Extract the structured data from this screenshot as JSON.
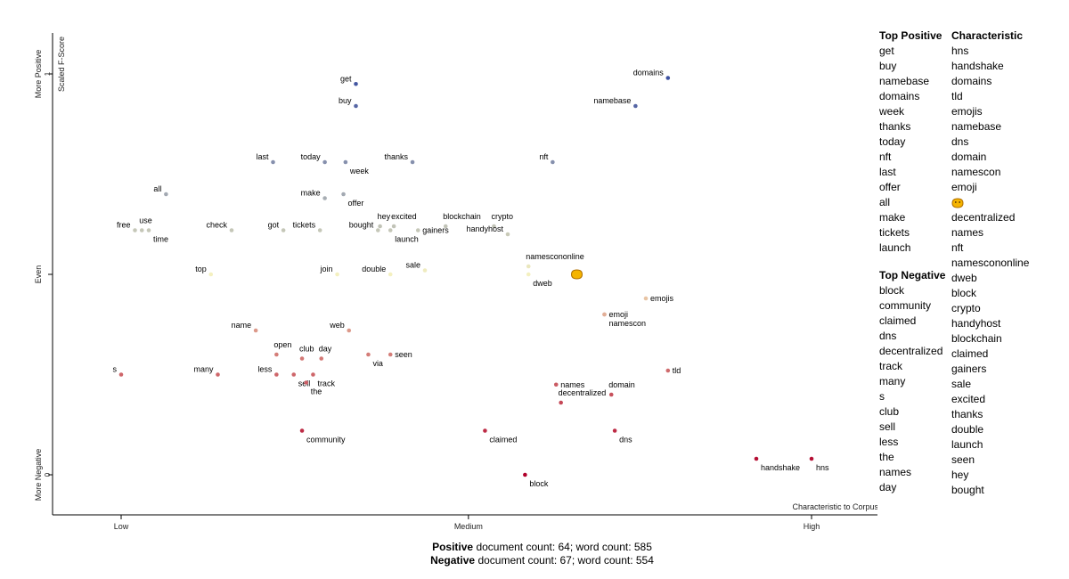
{
  "chart_data": {
    "type": "scatter",
    "ylabel": "Scaled F-Score",
    "xlabel": "Characteristic to Corpus",
    "x_ticks": [
      "Low",
      "Medium",
      "High"
    ],
    "y_ticks": [
      "More Positive",
      "Even",
      "More Negative"
    ],
    "y_tick_numbers": [
      "1",
      "0"
    ],
    "xlim": [
      0,
      1
    ],
    "ylim": [
      0,
      1
    ],
    "color_scale": {
      "positive": "#3b4fa0",
      "neutral": "#f4f0c0",
      "negative": "#b1002a"
    },
    "points": [
      {
        "term": "get",
        "x": 0.34,
        "y": 0.975,
        "label_side": "left"
      },
      {
        "term": "buy",
        "x": 0.34,
        "y": 0.92,
        "label_side": "left"
      },
      {
        "term": "domains",
        "x": 0.792,
        "y": 0.99,
        "label_side": "left"
      },
      {
        "term": "namebase",
        "x": 0.745,
        "y": 0.92,
        "label_side": "left"
      },
      {
        "term": "last",
        "x": 0.22,
        "y": 0.78,
        "label_side": "left"
      },
      {
        "term": "today",
        "x": 0.295,
        "y": 0.78,
        "label_side": "left"
      },
      {
        "term": "week",
        "x": 0.325,
        "y": 0.78,
        "label_side": "below"
      },
      {
        "term": "thanks",
        "x": 0.422,
        "y": 0.78,
        "label_side": "left"
      },
      {
        "term": "nft",
        "x": 0.625,
        "y": 0.78,
        "label_side": "left"
      },
      {
        "term": "all",
        "x": 0.065,
        "y": 0.7,
        "label_side": "left"
      },
      {
        "term": "make",
        "x": 0.295,
        "y": 0.69,
        "label_side": "left"
      },
      {
        "term": "offer",
        "x": 0.322,
        "y": 0.7,
        "label_side": "below"
      },
      {
        "term": "use",
        "x": 0.03,
        "y": 0.61,
        "label_side": "above"
      },
      {
        "term": "free",
        "x": 0.02,
        "y": 0.61,
        "label_side": "left"
      },
      {
        "term": "time",
        "x": 0.04,
        "y": 0.61,
        "label_side": "below"
      },
      {
        "term": "check",
        "x": 0.16,
        "y": 0.61,
        "label_side": "left"
      },
      {
        "term": "got",
        "x": 0.235,
        "y": 0.61,
        "label_side": "left"
      },
      {
        "term": "tickets",
        "x": 0.288,
        "y": 0.61,
        "label_side": "left"
      },
      {
        "term": "bought",
        "x": 0.372,
        "y": 0.61,
        "label_side": "left"
      },
      {
        "term": "hey",
        "x": 0.375,
        "y": 0.62,
        "label_side": "above"
      },
      {
        "term": "excited",
        "x": 0.395,
        "y": 0.62,
        "label_side": "above"
      },
      {
        "term": "launch",
        "x": 0.39,
        "y": 0.61,
        "label_side": "below"
      },
      {
        "term": "gainers",
        "x": 0.43,
        "y": 0.61,
        "label_side": "right"
      },
      {
        "term": "blockchain",
        "x": 0.47,
        "y": 0.62,
        "label_side": "above"
      },
      {
        "term": "crypto",
        "x": 0.54,
        "y": 0.62,
        "label_side": "above"
      },
      {
        "term": "handyhost",
        "x": 0.56,
        "y": 0.6,
        "label_side": "left"
      },
      {
        "term": "top",
        "x": 0.13,
        "y": 0.5,
        "label_side": "left"
      },
      {
        "term": "join",
        "x": 0.313,
        "y": 0.5,
        "label_side": "left"
      },
      {
        "term": "double",
        "x": 0.39,
        "y": 0.5,
        "label_side": "left"
      },
      {
        "term": "sale",
        "x": 0.44,
        "y": 0.51,
        "label_side": "left"
      },
      {
        "term": "namescononline",
        "x": 0.59,
        "y": 0.52,
        "label_side": "above"
      },
      {
        "term": "dweb",
        "x": 0.59,
        "y": 0.5,
        "label_side": "below"
      },
      {
        "term": "emojis",
        "x": 0.76,
        "y": 0.44,
        "label_side": "right"
      },
      {
        "term": "emoji",
        "x": 0.7,
        "y": 0.4,
        "label_side": "right"
      },
      {
        "term": "namescon",
        "x": 0.7,
        "y": 0.4,
        "label_side": "below"
      },
      {
        "term": "name",
        "x": 0.195,
        "y": 0.36,
        "label_side": "left"
      },
      {
        "term": "web",
        "x": 0.33,
        "y": 0.36,
        "label_side": "left"
      },
      {
        "term": "open",
        "x": 0.225,
        "y": 0.3,
        "label_side": "above"
      },
      {
        "term": "club",
        "x": 0.262,
        "y": 0.29,
        "label_side": "above"
      },
      {
        "term": "day",
        "x": 0.29,
        "y": 0.29,
        "label_side": "above"
      },
      {
        "term": "via",
        "x": 0.358,
        "y": 0.3,
        "label_side": "below"
      },
      {
        "term": "seen",
        "x": 0.39,
        "y": 0.3,
        "label_side": "right"
      },
      {
        "term": "s",
        "x": 0.0,
        "y": 0.25,
        "label_side": "left"
      },
      {
        "term": "many",
        "x": 0.14,
        "y": 0.25,
        "label_side": "left"
      },
      {
        "term": "less",
        "x": 0.225,
        "y": 0.25,
        "label_side": "left"
      },
      {
        "term": "sell",
        "x": 0.25,
        "y": 0.25,
        "label_side": "below"
      },
      {
        "term": "track",
        "x": 0.278,
        "y": 0.25,
        "label_side": "below"
      },
      {
        "term": "the",
        "x": 0.268,
        "y": 0.23,
        "label_side": "below"
      },
      {
        "term": "names",
        "x": 0.63,
        "y": 0.225,
        "label_side": "right"
      },
      {
        "term": "domain",
        "x": 0.71,
        "y": 0.2,
        "label_side": "above"
      },
      {
        "term": "tld",
        "x": 0.792,
        "y": 0.26,
        "label_side": "right"
      },
      {
        "term": "decentralized",
        "x": 0.637,
        "y": 0.18,
        "label_side": "above"
      },
      {
        "term": "community",
        "x": 0.262,
        "y": 0.11,
        "label_side": "below"
      },
      {
        "term": "claimed",
        "x": 0.527,
        "y": 0.11,
        "label_side": "below"
      },
      {
        "term": "dns",
        "x": 0.715,
        "y": 0.11,
        "label_side": "below"
      },
      {
        "term": "handshake",
        "x": 0.92,
        "y": 0.04,
        "label_side": "below"
      },
      {
        "term": "hns",
        "x": 1.0,
        "y": 0.04,
        "label_side": "below"
      },
      {
        "term": "block",
        "x": 0.585,
        "y": 0.0,
        "label_side": "below"
      }
    ],
    "emoji_point": {
      "icon": "smiling-face-icon",
      "x": 0.66,
      "y": 0.5
    }
  },
  "top_positive": {
    "title": "Top Positive",
    "items": [
      "get",
      "buy",
      "namebase",
      "domains",
      "week",
      "thanks",
      "today",
      "nft",
      "last",
      "offer",
      "all",
      "make",
      "tickets",
      "launch"
    ]
  },
  "top_negative": {
    "title": "Top Negative",
    "items": [
      "block",
      "community",
      "claimed",
      "dns",
      "decentralized",
      "track",
      "many",
      "s",
      "club",
      "sell",
      "less",
      "the",
      "names",
      "day"
    ]
  },
  "characteristic": {
    "title": "Characteristic",
    "items": [
      "hns",
      "handshake",
      "domains",
      "tld",
      "emojis",
      "namebase",
      "dns",
      "domain",
      "namescon",
      "emoji",
      "",
      "decentralized",
      "names",
      "nft",
      "namescononline",
      "dweb",
      "block",
      "crypto",
      "handyhost",
      "blockchain",
      "claimed",
      "gainers",
      "sale",
      "excited",
      "thanks",
      "double",
      "launch",
      "seen",
      "hey",
      "bought"
    ],
    "icon_index": 10,
    "icon": "smiling-face-icon"
  },
  "footer": {
    "positive_label": "Positive",
    "positive_text": " document count: 64; word count: 585",
    "negative_label": "Negative",
    "negative_text": " document count: 67; word count: 554"
  }
}
